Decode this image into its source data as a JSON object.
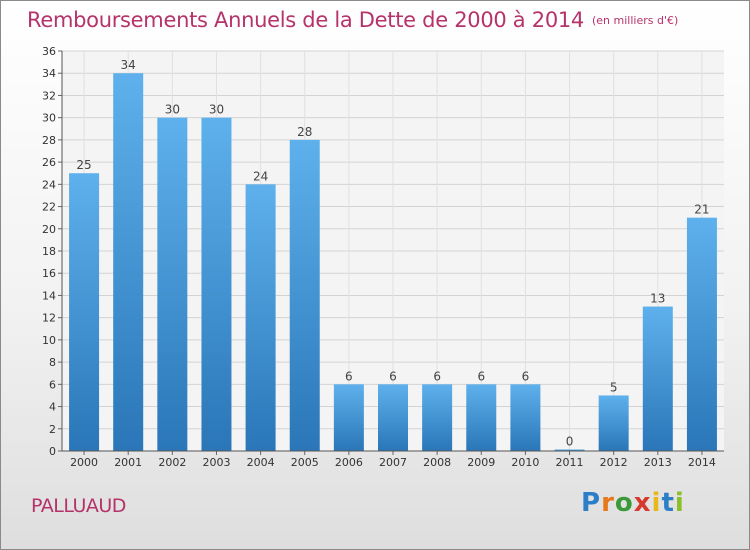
{
  "chart_data": {
    "type": "bar",
    "title": "Remboursements Annuels de la Dette de 2000 à 2014",
    "unit": "(en milliers d'€)",
    "categories": [
      "2000",
      "2001",
      "2002",
      "2003",
      "2004",
      "2005",
      "2006",
      "2007",
      "2008",
      "2009",
      "2010",
      "2011",
      "2012",
      "2013",
      "2014"
    ],
    "values": [
      25,
      34,
      30,
      30,
      24,
      28,
      6,
      6,
      6,
      6,
      6,
      0,
      5,
      13,
      21
    ],
    "ylim": [
      0,
      36
    ],
    "yticks": [
      0,
      2,
      4,
      6,
      8,
      10,
      12,
      14,
      16,
      18,
      20,
      22,
      24,
      26,
      28,
      30,
      32,
      34,
      36
    ],
    "grid": true,
    "bar_color": "#3a8fd4",
    "bar_color_light": "#5eb1ec",
    "bar_color_dark": "#2a76b8"
  },
  "footer": {
    "commune": "PALLUAUD",
    "logo_letters": [
      {
        "ch": "P",
        "color": "#2c7fc7"
      },
      {
        "ch": "r",
        "color": "#e7791c"
      },
      {
        "ch": "o",
        "color": "#3a9a3a"
      },
      {
        "ch": "x",
        "color": "#d63a2b"
      },
      {
        "ch": "i",
        "color": "#e7b71c"
      },
      {
        "ch": "t",
        "color": "#2c7fc7"
      },
      {
        "ch": "i",
        "color": "#8bbf2a"
      }
    ]
  }
}
